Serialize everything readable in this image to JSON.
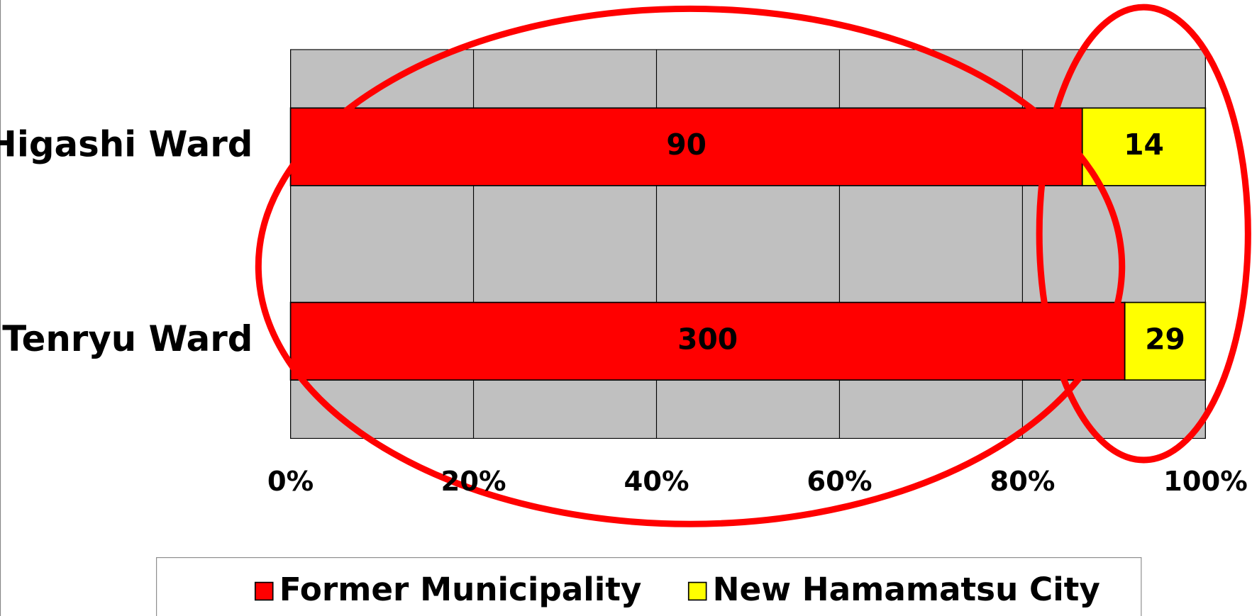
{
  "chart_data": {
    "type": "bar_stacked_percent",
    "categories": [
      "Higashi Ward",
      "Tenryu Ward"
    ],
    "series": [
      {
        "name": "Former Municipality",
        "color": "#ff0000",
        "values": [
          90,
          300
        ]
      },
      {
        "name": "New Hamamatsu City",
        "color": "#ffff00",
        "values": [
          14,
          29
        ]
      }
    ],
    "xlim": [
      0,
      100
    ],
    "xticks": [
      {
        "value": 0,
        "label": "0%"
      },
      {
        "value": 20,
        "label": "20%"
      },
      {
        "value": 40,
        "label": "40%"
      },
      {
        "value": 60,
        "label": "60%"
      },
      {
        "value": 80,
        "label": "80%"
      },
      {
        "value": 100,
        "label": "100%"
      }
    ],
    "grid": true,
    "legend": "bottom"
  }
}
